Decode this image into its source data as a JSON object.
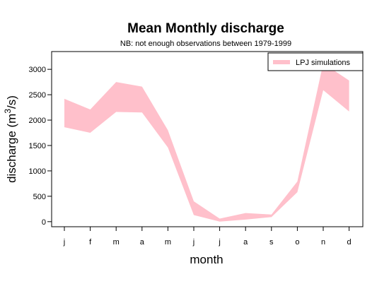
{
  "chart_data": {
    "type": "area",
    "title": "Mean Monthly discharge",
    "subtitle": "NB: not enough observations between 1979-1999",
    "xlabel": "month",
    "ylabel_main": "discharge (m",
    "ylabel_sup": "3",
    "ylabel_tail": "/s)",
    "categories": [
      "j",
      "f",
      "m",
      "a",
      "m",
      "j",
      "j",
      "a",
      "s",
      "o",
      "n",
      "d"
    ],
    "yticks": [
      0,
      500,
      1000,
      1500,
      2000,
      2500,
      3000
    ],
    "ylim": [
      -100,
      3350
    ],
    "series": [
      {
        "name": "LPJ simulations",
        "color": "#ffc0cb",
        "lower": [
          1860,
          1750,
          2160,
          2150,
          1460,
          130,
          0,
          40,
          90,
          580,
          2590,
          2170
        ],
        "upper": [
          2420,
          2210,
          2750,
          2660,
          1800,
          400,
          60,
          170,
          140,
          790,
          3120,
          2780
        ]
      }
    ],
    "legend": {
      "placement": "top-right",
      "label": "LPJ simulations"
    }
  }
}
